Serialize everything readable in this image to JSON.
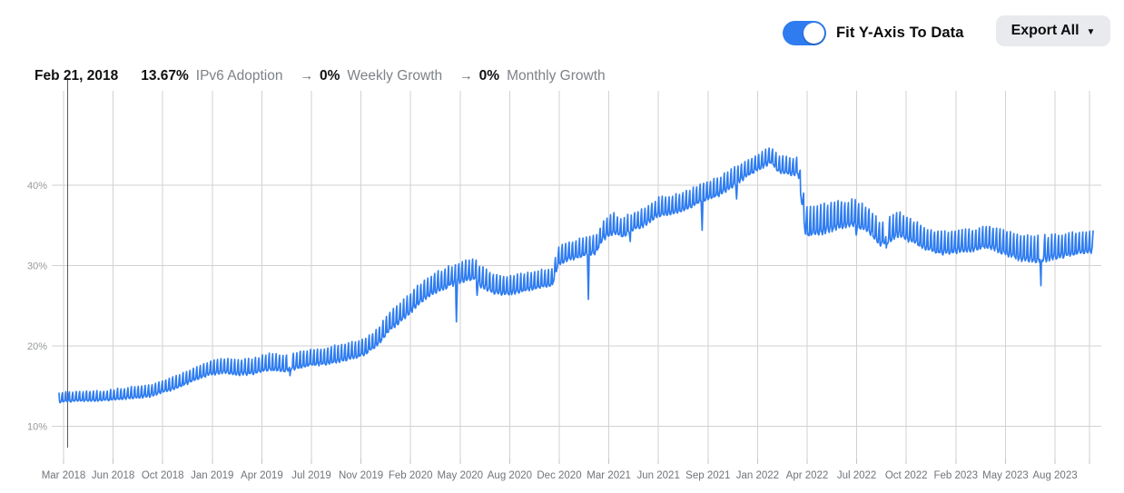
{
  "controls": {
    "fit_toggle": {
      "label": "Fit Y-Axis To Data",
      "state": "on"
    },
    "export_button": {
      "label": "Export All",
      "caret": "▼"
    }
  },
  "readout": {
    "date": "Feb 21, 2018",
    "adoption_value": "13.67%",
    "adoption_label": "IPv6 Adoption",
    "arrow1": "→",
    "weekly_value": "0%",
    "weekly_label": "Weekly Growth",
    "arrow2": "→",
    "monthly_value": "0%",
    "monthly_label": "Monthly Growth"
  },
  "colors": {
    "accent_blue": "#2e7cf0",
    "grid": "#d2d2d2",
    "tick_mark": "#c4c4c4",
    "x_label": "#70757a",
    "y_label": "#97999c",
    "muted_text": "#7d8287",
    "crosshair": "#56595d",
    "export_bg": "#e9eaed"
  },
  "chart_data": {
    "type": "line",
    "series_name": "IPv6 Adoption",
    "unit": "percent",
    "line_color": "#2e7cf0",
    "grid": true,
    "legend_position": "none",
    "selected_point": {
      "date": "Feb 21, 2018",
      "value_pct": 13.67,
      "weekly_growth_pct": 0,
      "monthly_growth_pct": 0
    },
    "x_axis": {
      "tick_labels": [
        "Mar 2018",
        "Jun 2018",
        "Oct 2018",
        "Jan 2019",
        "Apr 2019",
        "Jul 2019",
        "Nov 2019",
        "Feb 2020",
        "May 2020",
        "Aug 2020",
        "Dec 2020",
        "Mar 2021",
        "Jun 2021",
        "Sep 2021",
        "Jan 2022",
        "Apr 2022",
        "Jul 2022",
        "Oct 2022",
        "Feb 2023",
        "May 2023",
        "Aug 2023"
      ]
    },
    "y_axis": {
      "ticks": [
        {
          "value": 10,
          "label": "10%"
        },
        {
          "value": 20,
          "label": "20%"
        },
        {
          "value": 30,
          "label": "30%"
        },
        {
          "value": 40,
          "label": "40%"
        }
      ],
      "range_min": 6,
      "range_max": 50.5
    },
    "series": {
      "start_month": "2018-02",
      "end_month": "2023-11",
      "anchors_month_value_amplitude": [
        [
          0,
          13.6,
          0.6
        ],
        [
          1,
          13.7,
          0.6
        ],
        [
          2,
          13.8,
          0.6
        ],
        [
          3,
          13.8,
          0.6
        ],
        [
          4,
          14.0,
          0.65
        ],
        [
          5,
          14.2,
          0.7
        ],
        [
          6,
          14.4,
          0.7
        ],
        [
          7,
          15.0,
          0.75
        ],
        [
          8,
          15.6,
          0.8
        ],
        [
          9,
          16.5,
          0.8
        ],
        [
          10,
          17.2,
          0.8
        ],
        [
          11,
          17.5,
          0.9
        ],
        [
          12,
          17.3,
          0.9
        ],
        [
          13,
          17.5,
          0.95
        ],
        [
          14,
          18.0,
          1.0
        ],
        [
          15,
          17.8,
          1.0
        ],
        [
          16,
          18.2,
          1.0
        ],
        [
          17,
          18.6,
          1.0
        ],
        [
          18,
          18.8,
          1.0
        ],
        [
          19,
          19.2,
          1.0
        ],
        [
          20,
          19.6,
          1.0
        ],
        [
          20.8,
          20.4,
          1.0
        ],
        [
          21.5,
          21.6,
          1.1
        ],
        [
          22,
          23.0,
          1.2
        ],
        [
          23,
          24.5,
          1.2
        ],
        [
          24,
          26.4,
          1.2
        ],
        [
          25,
          27.8,
          1.2
        ],
        [
          26,
          28.6,
          1.2
        ],
        [
          27,
          29.3,
          1.2
        ],
        [
          27.7,
          29.6,
          1.2
        ],
        [
          28,
          28.8,
          1.3
        ],
        [
          29,
          27.8,
          1.2
        ],
        [
          30,
          27.5,
          1.1
        ],
        [
          31,
          27.9,
          1.1
        ],
        [
          32,
          28.3,
          1.1
        ],
        [
          32.9,
          28.6,
          1.1
        ],
        [
          33.3,
          31.2,
          1.1
        ],
        [
          34,
          31.8,
          1.1
        ],
        [
          35,
          32.3,
          1.1
        ],
        [
          35.8,
          32.6,
          1.1
        ],
        [
          36.3,
          34.3,
          1.1
        ],
        [
          37,
          35.3,
          1.2
        ],
        [
          37.6,
          34.6,
          1.1
        ],
        [
          38,
          35.2,
          1.1
        ],
        [
          39,
          36.0,
          1.1
        ],
        [
          40,
          37.3,
          1.1
        ],
        [
          41,
          37.6,
          1.1
        ],
        [
          42,
          38.2,
          1.1
        ],
        [
          43,
          39.2,
          1.1
        ],
        [
          44,
          39.8,
          1.1
        ],
        [
          45,
          41.0,
          1.1
        ],
        [
          46,
          42.2,
          1.0
        ],
        [
          47,
          43.3,
          1.0
        ],
        [
          47.5,
          43.8,
          1.0
        ],
        [
          48,
          42.6,
          1.0
        ],
        [
          49,
          42.3,
          1.0
        ],
        [
          49.3,
          42.5,
          1.0
        ],
        [
          49.8,
          35.8,
          1.8
        ],
        [
          50,
          35.5,
          1.8
        ],
        [
          51,
          35.8,
          1.7
        ],
        [
          52,
          36.3,
          1.6
        ],
        [
          53,
          36.5,
          1.6
        ],
        [
          54,
          35.8,
          1.5
        ],
        [
          54.8,
          33.9,
          1.4
        ],
        [
          55,
          34.0,
          1.4
        ],
        [
          56,
          35.2,
          1.5
        ],
        [
          57,
          34.2,
          1.4
        ],
        [
          58,
          33.2,
          1.3
        ],
        [
          59,
          32.8,
          1.3
        ],
        [
          60,
          33.0,
          1.3
        ],
        [
          61,
          33.2,
          1.3
        ],
        [
          62,
          33.6,
          1.3
        ],
        [
          63,
          33.0,
          1.5
        ],
        [
          64,
          32.3,
          1.5
        ],
        [
          65,
          32.0,
          1.6
        ],
        [
          66,
          32.2,
          1.5
        ],
        [
          67,
          32.5,
          1.4
        ],
        [
          68,
          32.8,
          1.3
        ],
        [
          69,
          33.0,
          1.3
        ]
      ],
      "weekly_cycle": "weekend_peaks",
      "weekly_pattern_sun_to_sat": [
        1.0,
        -0.85,
        -1.0,
        -1.0,
        -0.9,
        -0.55,
        0.45
      ],
      "dip_events_month_value": [
        [
          15.4,
          16.3
        ],
        [
          26.5,
          23.0
        ],
        [
          27.9,
          26.3
        ],
        [
          35.3,
          25.8
        ],
        [
          38.1,
          33.0
        ],
        [
          42.9,
          34.4
        ],
        [
          45.2,
          38.3
        ],
        [
          53.2,
          33.8
        ],
        [
          55.2,
          32.2
        ],
        [
          65.5,
          27.5
        ]
      ]
    }
  }
}
